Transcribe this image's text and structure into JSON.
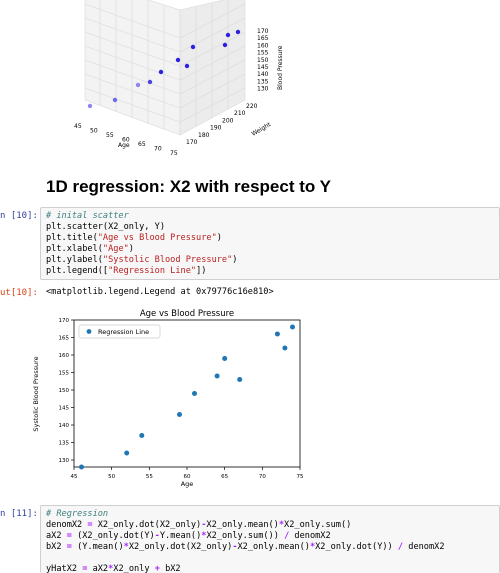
{
  "top_plot": {
    "x_label": "Age",
    "y_label": "Weight",
    "z_label": "Blood Pressure",
    "x_ticks": [
      "45",
      "50",
      "55",
      "60",
      "65",
      "70",
      "75"
    ],
    "y_ticks": [
      "170",
      "180",
      "190",
      "200",
      "210",
      "220"
    ],
    "z_ticks": [
      "130",
      "135",
      "140",
      "145",
      "150",
      "155",
      "160",
      "165",
      "170"
    ],
    "point_color": "#2a22e0"
  },
  "section_heading": "1D regression: X2 with respect to Y",
  "cell10": {
    "in_prompt": "n [10]:",
    "code": [
      {
        "type": "comment",
        "text": "# inital scatter"
      },
      {
        "type": "call",
        "before": "plt.scatter(X2_only, Y)",
        "str": "",
        "after": ""
      },
      {
        "type": "call",
        "before": "plt.title(",
        "str": "\"Age vs Blood Pressure\"",
        "after": ")"
      },
      {
        "type": "call",
        "before": "plt.xlabel(",
        "str": "\"Age\"",
        "after": ")"
      },
      {
        "type": "call",
        "before": "plt.ylabel(",
        "str": "\"Systolic Blood Pressure\"",
        "after": ")"
      },
      {
        "type": "call",
        "before": "plt.legend([",
        "str": "\"Regression Line\"",
        "after": "])"
      }
    ],
    "out_prompt": "ut[10]:",
    "out_text": "<matplotlib.legend.Legend at 0x79776c16e810>"
  },
  "chart_data": {
    "type": "scatter",
    "title": "Age vs Blood Pressure",
    "xlabel": "Age",
    "ylabel": "Systolic Blood Pressure",
    "legend": [
      "Regression Line"
    ],
    "legend_position": "top-left",
    "xlim": [
      45,
      75
    ],
    "ylim": [
      128,
      170
    ],
    "x_ticks": [
      45,
      50,
      55,
      60,
      65,
      70,
      75
    ],
    "y_ticks": [
      130,
      135,
      140,
      145,
      150,
      155,
      160,
      165,
      170
    ],
    "grid": false,
    "color": "#1f77b4",
    "x": [
      46,
      52,
      54,
      59,
      61,
      64,
      65,
      67,
      72,
      73,
      74
    ],
    "y": [
      128,
      132,
      137,
      143,
      149,
      154,
      159,
      153,
      166,
      162,
      168
    ]
  },
  "cell11": {
    "in_prompt": "n [11]:",
    "code": [
      {
        "type": "comment",
        "text": "# Regression"
      },
      {
        "type": "raw",
        "text": "denomX2 = X2_only.dot(X2_only)-X2_only.mean()*X2_only.sum()"
      },
      {
        "type": "raw",
        "text": "aX2 = (X2_only.dot(Y)-Y.mean()*X2_only.sum()) / denomX2"
      },
      {
        "type": "raw",
        "text": "bX2 = (Y.mean()*X2_only.dot(X2_only)-X2_only.mean()*X2_only.dot(Y)) / denomX2"
      },
      {
        "type": "raw",
        "text": ""
      },
      {
        "type": "raw",
        "text": "yHatX2 = aX2*X2_only + bX2"
      }
    ]
  }
}
